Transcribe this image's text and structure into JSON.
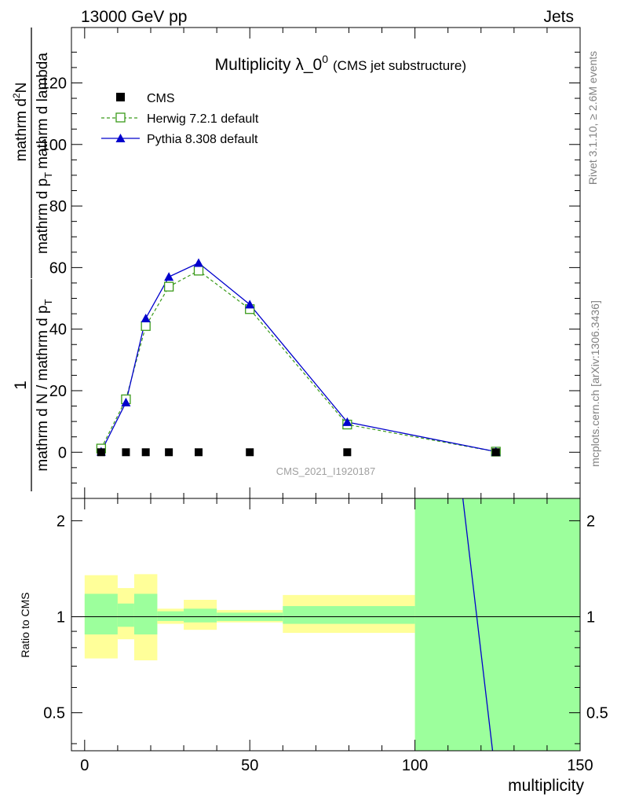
{
  "header": {
    "left": "13000 GeV pp",
    "right": "Jets"
  },
  "title": {
    "main": "Multiplicity λ_0",
    "sup": "0",
    "sub": "(CMS jet substructure)"
  },
  "ylabel": {
    "numerator": "1",
    "denominator": "mathrm d N / mathrm d p",
    "denominator_sub": "T",
    "factor_num": "mathrm d",
    "factor_num_sup": "2",
    "factor_num_tail": "N",
    "factor_den1": "mathrm d p",
    "factor_den1_sub": "T",
    "factor_den2": "mathrm d lambda"
  },
  "side": {
    "rivet": "Rivet 3.1.10, ≥ 2.6M events",
    "mcplots": "mcplots.cern.ch [arXiv:1306.3436]"
  },
  "watermark": "CMS_2021_I1920187",
  "ratio_label": "Ratio to CMS",
  "xlabel": "multiplicity",
  "legend": {
    "cms": "CMS",
    "herwig": "Herwig 7.2.1 default",
    "pythia": "Pythia 8.308 default"
  },
  "colors": {
    "herwig": "#3a9a1a",
    "pythia": "#0000cc",
    "band_inner": "#9cff9c",
    "band_outer": "#ffff99"
  },
  "chart_data": {
    "type": "line",
    "x_ticks": [
      "0",
      "50",
      "100",
      "150"
    ],
    "y_ticks_main": [
      "0",
      "20",
      "40",
      "60",
      "80",
      "100",
      "120"
    ],
    "y_ticks_ratio": [
      "0.5",
      "1",
      "2"
    ],
    "xlim": [
      -4,
      150
    ],
    "ylim_main": [
      -15,
      138
    ],
    "ylim_ratio": [
      0.38,
      2.35
    ],
    "cms": {
      "x": [
        5,
        12.5,
        18.5,
        25.5,
        34.5,
        50,
        79.5,
        124.5
      ],
      "y": [
        0,
        0,
        0,
        0,
        0,
        0,
        0,
        0
      ]
    },
    "series": [
      {
        "name": "Herwig 7.2.1 default",
        "x": [
          5,
          12.5,
          18.5,
          25.5,
          34.5,
          50,
          79.5,
          124.5
        ],
        "values": [
          1.2,
          17.2,
          41.0,
          53.8,
          59.0,
          46.5,
          9.0,
          0.2
        ]
      },
      {
        "name": "Pythia 8.308 default",
        "x": [
          5,
          12.5,
          18.5,
          25.5,
          34.5,
          50,
          79.5,
          124.5
        ],
        "values": [
          0.2,
          16.2,
          43.5,
          57.0,
          61.5,
          48.0,
          9.8,
          0.2
        ]
      }
    ],
    "ratio_bands": [
      {
        "x0": 0,
        "x1": 10,
        "inner": [
          0.88,
          1.18
        ],
        "outer": [
          0.74,
          1.35
        ]
      },
      {
        "x0": 10,
        "x1": 15,
        "inner": [
          0.93,
          1.1
        ],
        "outer": [
          0.85,
          1.23
        ]
      },
      {
        "x0": 15,
        "x1": 22,
        "inner": [
          0.88,
          1.18
        ],
        "outer": [
          0.73,
          1.36
        ]
      },
      {
        "x0": 22,
        "x1": 30,
        "inner": [
          0.97,
          1.04
        ],
        "outer": [
          0.95,
          1.06
        ]
      },
      {
        "x0": 30,
        "x1": 40,
        "inner": [
          0.96,
          1.06
        ],
        "outer": [
          0.91,
          1.13
        ]
      },
      {
        "x0": 40,
        "x1": 60,
        "inner": [
          0.97,
          1.03
        ],
        "outer": [
          0.96,
          1.05
        ]
      },
      {
        "x0": 60,
        "x1": 100,
        "inner": [
          0.95,
          1.08
        ],
        "outer": [
          0.89,
          1.17
        ]
      },
      {
        "x0": 100,
        "x1": 150,
        "inner": [
          0.38,
          2.35
        ],
        "outer": [
          0.38,
          2.35
        ]
      }
    ],
    "ratio_pythia_line": {
      "x": [
        114.5,
        123.5
      ],
      "y": [
        2.35,
        0.38
      ]
    }
  }
}
